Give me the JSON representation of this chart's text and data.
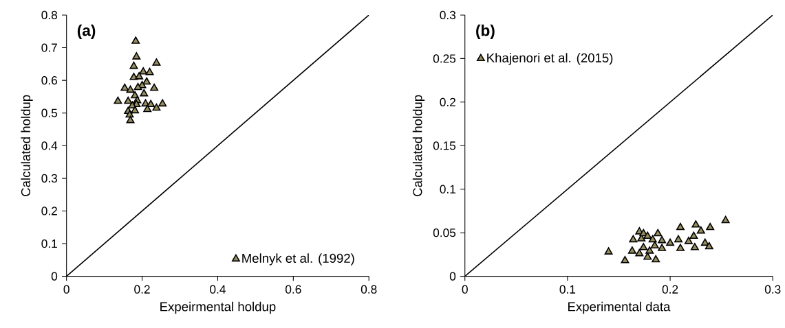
{
  "chart_data": [
    {
      "type": "scatter",
      "annotations": [
        "(a)"
      ],
      "xlabel": "Expeirmental holdup",
      "ylabel": "Calculated holdup",
      "xlim": [
        0,
        0.8
      ],
      "ylim": [
        0,
        0.8
      ],
      "xticks": [
        0,
        0.2,
        0.4,
        0.6,
        0.8
      ],
      "yticks": [
        0,
        0.1,
        0.2,
        0.3,
        0.4,
        0.5,
        0.6,
        0.7,
        0.8
      ],
      "legend": "bottom right",
      "series": [
        {
          "name": "Melnyk et al. (1992)",
          "color": "#958e60",
          "marker": "triangle",
          "x": [
            0.183,
            0.185,
            0.238,
            0.178,
            0.203,
            0.22,
            0.178,
            0.192,
            0.212,
            0.2,
            0.154,
            0.169,
            0.189,
            0.232,
            0.205,
            0.181,
            0.136,
            0.163,
            0.187,
            0.185,
            0.209,
            0.223,
            0.254,
            0.174,
            0.214,
            0.238,
            0.163,
            0.181,
            0.167,
            0.169
          ],
          "values": [
            0.72,
            0.672,
            0.653,
            0.643,
            0.626,
            0.624,
            0.609,
            0.611,
            0.595,
            0.584,
            0.576,
            0.57,
            0.578,
            0.576,
            0.559,
            0.553,
            0.536,
            0.536,
            0.538,
            0.526,
            0.528,
            0.526,
            0.528,
            0.522,
            0.511,
            0.515,
            0.505,
            0.507,
            0.494,
            0.477
          ]
        },
        {
          "type": "line",
          "color": "#000000",
          "x": [
            0,
            0.8
          ],
          "values": [
            0,
            0.8
          ]
        }
      ]
    },
    {
      "type": "scatter",
      "annotations": [
        "(b)"
      ],
      "xlabel": "Experimental data",
      "ylabel": "Calculated holdup",
      "xlim": [
        0,
        0.3
      ],
      "ylim": [
        0,
        0.3
      ],
      "xticks": [
        0,
        0.1,
        0.2,
        0.3
      ],
      "yticks": [
        0,
        0.05,
        0.1,
        0.15,
        0.2,
        0.25,
        0.3
      ],
      "legend": "top left",
      "series": [
        {
          "name": "Khajenori et al. (2015)",
          "color": "#958e60",
          "marker": "triangle",
          "x": [
            0.14,
            0.156,
            0.163,
            0.164,
            0.17,
            0.172,
            0.17,
            0.174,
            0.174,
            0.178,
            0.178,
            0.18,
            0.183,
            0.185,
            0.188,
            0.186,
            0.192,
            0.192,
            0.2,
            0.208,
            0.21,
            0.218,
            0.223,
            0.21,
            0.224,
            0.225,
            0.23,
            0.234,
            0.238,
            0.239,
            0.254
          ],
          "values": [
            0.028,
            0.018,
            0.029,
            0.042,
            0.051,
            0.043,
            0.026,
            0.049,
            0.033,
            0.046,
            0.022,
            0.029,
            0.042,
            0.035,
            0.049,
            0.019,
            0.041,
            0.032,
            0.038,
            0.042,
            0.032,
            0.04,
            0.046,
            0.056,
            0.033,
            0.059,
            0.052,
            0.038,
            0.034,
            0.056,
            0.064
          ]
        },
        {
          "type": "line",
          "color": "#000000",
          "x": [
            0,
            0.3
          ],
          "values": [
            0,
            0.3
          ]
        }
      ]
    }
  ]
}
